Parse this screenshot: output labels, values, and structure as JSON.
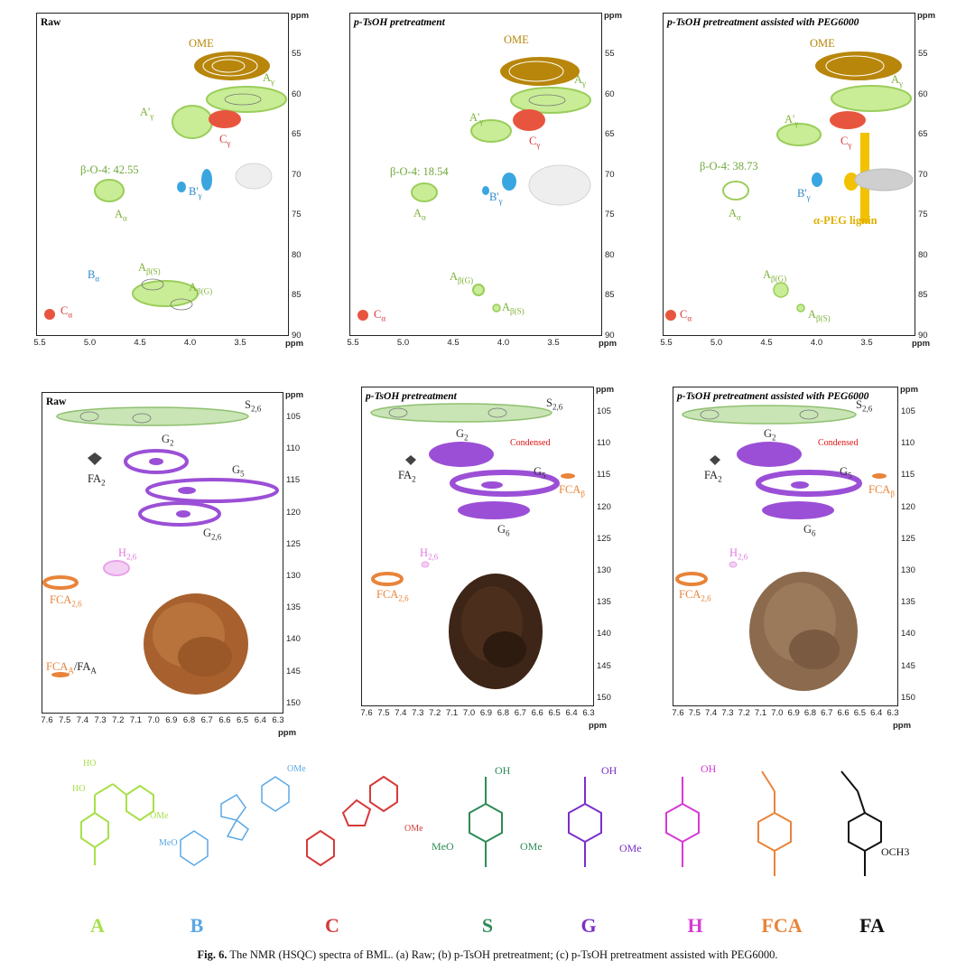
{
  "caption": {
    "prefix": "Fig. 6.",
    "text": "The NMR (HSQC) spectra of BML. (a) Raw; (b) p-TsOH pretreatment; (c) p-TsOH pretreatment assisted with PEG6000."
  },
  "axis_unit": "ppm",
  "top_panels": [
    {
      "title": "Raw",
      "beta_o4": "β-O-4: 42.55"
    },
    {
      "title": "p-TsOH pretreatment",
      "beta_o4": "β-O-4: 18.54"
    },
    {
      "title": "p-TsOH pretreatment assisted with PEG6000",
      "beta_o4": "β-O-4: 38.73"
    }
  ],
  "bottom_panels": [
    {
      "title": "Raw"
    },
    {
      "title": "p-TsOH pretreatment"
    },
    {
      "title": "p-TsOH pretreatment assisted with PEG6000"
    }
  ],
  "top_y_ticks": [
    "55",
    "60",
    "65",
    "70",
    "75",
    "80",
    "85",
    "90"
  ],
  "top_x_ticks": [
    "5.5",
    "5.0",
    "4.5",
    "4.0",
    "3.5"
  ],
  "bottom_y_ticks": [
    "105",
    "110",
    "115",
    "120",
    "125",
    "130",
    "135",
    "140",
    "145",
    "150"
  ],
  "bottom_x_ticks": [
    "7.6",
    "7.5",
    "7.4",
    "7.3",
    "7.2",
    "7.1",
    "7.0",
    "6.9",
    "6.8",
    "6.7",
    "6.6",
    "6.5",
    "6.4",
    "6.3"
  ],
  "labels": {
    "ome": "OME",
    "a_gamma": "A",
    "a_prime_gamma": "A'",
    "c_gamma": "C",
    "b_prime_gamma": "B'",
    "a_alpha": "A",
    "b_alpha": "B",
    "a_beta_s": "A",
    "a_beta_g": "A",
    "c_alpha": "C",
    "peg": "α-PEG lignin",
    "s26": "S",
    "g2": "G",
    "g5": "G",
    "g26": "G",
    "g6": "G",
    "fa2": "FA",
    "h26": "H",
    "fca26": "FCA",
    "fca_beta": "FCA",
    "fca_a_fa_a": "FCA",
    "fa_a_part": "/FA",
    "condensed": "Condensed"
  },
  "subscripts": {
    "gamma": "γ",
    "alpha": "α",
    "beta_s": "β(S)",
    "beta_g": "β(G)",
    "s26": "2,6",
    "g2": "2",
    "g5": "5",
    "g6": "6",
    "g26": "2,6",
    "fa2": "2",
    "h26": "2,6",
    "fca26": "2,6",
    "fca_beta": "β",
    "fca_a": "A",
    "fa_a": "A"
  },
  "structures": [
    {
      "label": "A",
      "color": "#a8e04a"
    },
    {
      "label": "B",
      "color": "#5aa8e6"
    },
    {
      "label": "C",
      "color": "#d63a3a"
    },
    {
      "label": "S",
      "color": "#2e8b57"
    },
    {
      "label": "G",
      "color": "#7b2fc8"
    },
    {
      "label": "H",
      "color": "#d63ad6"
    },
    {
      "label": "FCA",
      "color": "#e8843a"
    },
    {
      "label": "FA",
      "color": "#111111"
    }
  ],
  "structure_texts": {
    "ho": "HO",
    "oh": "OH",
    "ome": "OMe",
    "meo": "MeO",
    "och3": "OCH3",
    "o": "O"
  },
  "colors": {
    "ome": "#b8860b",
    "a": "#9acd5a",
    "c": "#e8553f",
    "b": "#3aa6e0",
    "peg": "#f2c200",
    "gray": "#cfcfcf",
    "s": "#8fc070",
    "g": "#9b4fd6",
    "fa": "#444444",
    "h": "#e9a2e9",
    "fca": "#e8843a",
    "condensed": "#d11"
  }
}
